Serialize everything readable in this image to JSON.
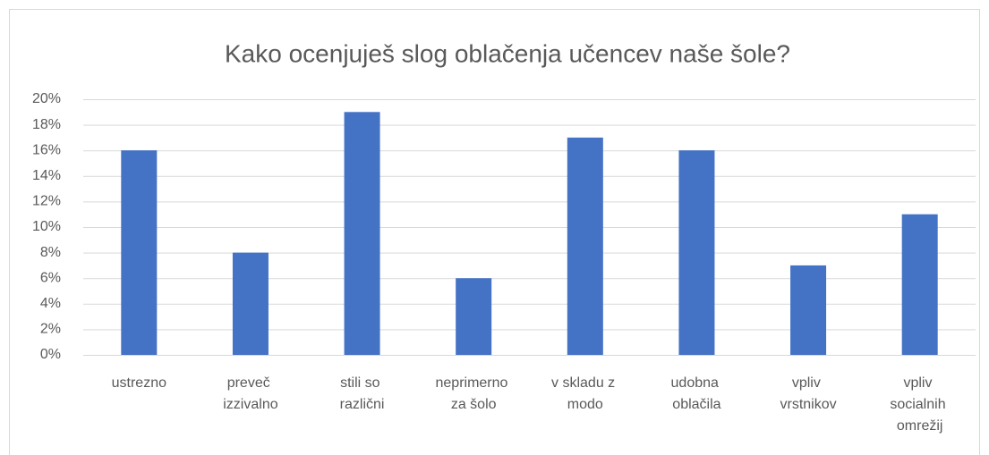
{
  "chart_data": {
    "type": "bar",
    "title": "Kako ocenjuješ slog oblačenja učencev naše šole?",
    "categories": [
      "ustrezno",
      "preveč izzivalno",
      "stili so različni",
      "neprimerno za šolo",
      "v skladu z modo",
      "udobna oblačila",
      "vpliv vrstnikov",
      "vpliv socialnih omrežij"
    ],
    "values": [
      16,
      8,
      19,
      6,
      17,
      16,
      7,
      11
    ],
    "color": "#4472c4",
    "ylim": [
      0,
      20
    ],
    "yticks": [
      {
        "value": 0,
        "label": "0%"
      },
      {
        "value": 2,
        "label": "2%"
      },
      {
        "value": 4,
        "label": "4%"
      },
      {
        "value": 6,
        "label": "6%"
      },
      {
        "value": 8,
        "label": "8%"
      },
      {
        "value": 10,
        "label": "10%"
      },
      {
        "value": 12,
        "label": "12%"
      },
      {
        "value": 14,
        "label": "14%"
      },
      {
        "value": 16,
        "label": "16%"
      },
      {
        "value": 18,
        "label": "18%"
      },
      {
        "value": 20,
        "label": "20%"
      }
    ],
    "grid": true
  }
}
